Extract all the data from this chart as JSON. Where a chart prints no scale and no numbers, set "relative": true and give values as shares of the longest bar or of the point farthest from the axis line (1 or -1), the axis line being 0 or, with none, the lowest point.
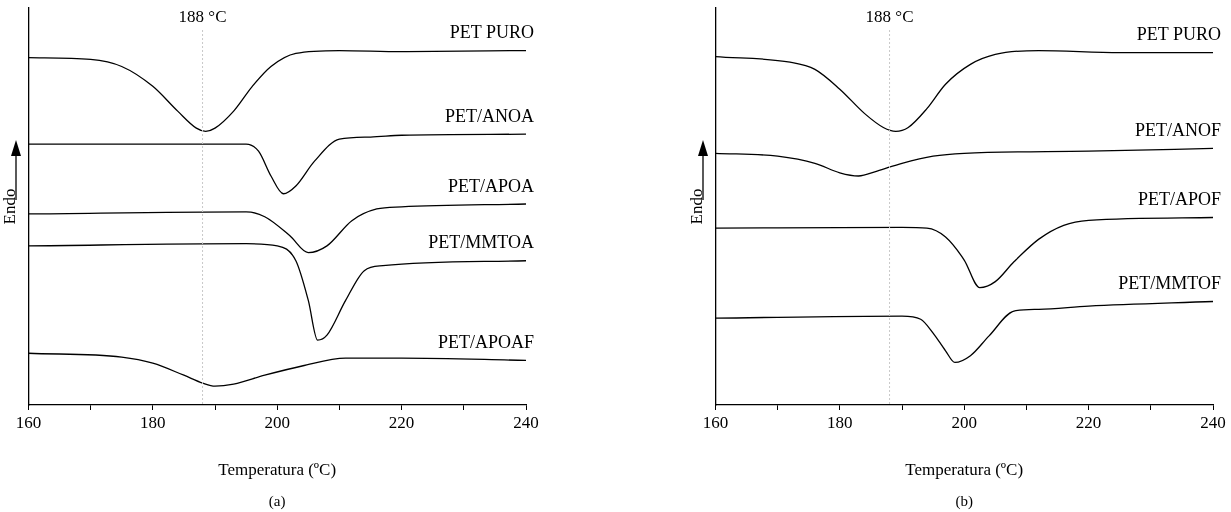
{
  "chart_data": [
    {
      "type": "line",
      "relative": true,
      "xlabel": "Temperatura (ºC)",
      "ylabel": "Endo",
      "annotations": [
        "(a)"
      ],
      "legend": false,
      "grid": false,
      "marker": "none",
      "line_style": "solid",
      "xlim": [
        160,
        240
      ],
      "xticks": [
        160,
        {
          "value": 170,
          "label": null
        },
        180,
        {
          "value": 190,
          "label": null
        },
        200,
        {
          "value": 210,
          "label": null
        },
        220,
        {
          "value": 230,
          "label": null
        },
        240
      ],
      "ref_lines": [
        {
          "axis": "x",
          "value": 188,
          "label": "188 °C",
          "color": "#c8c8c8",
          "line_style": "dotted"
        }
      ],
      "series": [
        {
          "name": "PET PURO",
          "color": "#000000",
          "x": [
            160,
            170,
            175,
            180,
            184,
            187,
            188.5,
            190,
            193,
            196,
            199,
            203,
            210,
            220,
            240
          ],
          "values": [
            0.98,
            0.975,
            0.955,
            0.899,
            0.829,
            0.781,
            0.772,
            0.781,
            0.829,
            0.899,
            0.955,
            0.992,
            1.0,
            0.997,
            1.0
          ]
        },
        {
          "name": "PET/ANOA",
          "color": "#000000",
          "x": [
            160,
            195,
            197,
            199,
            201,
            203,
            206,
            210,
            215,
            220,
            240
          ],
          "values": [
            0.736,
            0.736,
            0.716,
            0.646,
            0.596,
            0.618,
            0.688,
            0.75,
            0.756,
            0.761,
            0.764
          ]
        },
        {
          "name": "PET/APOA",
          "color": "#000000",
          "x": [
            160,
            195,
            198,
            202,
            205,
            208,
            212,
            216,
            220,
            240
          ],
          "values": [
            0.539,
            0.545,
            0.531,
            0.478,
            0.43,
            0.449,
            0.52,
            0.553,
            0.559,
            0.567
          ]
        },
        {
          "name": "PET/MMTOA",
          "color": "#000000",
          "x": [
            160,
            195,
            200,
            203,
            205,
            206.5,
            208,
            211,
            214,
            217,
            240
          ],
          "values": [
            0.449,
            0.455,
            0.449,
            0.407,
            0.295,
            0.183,
            0.197,
            0.295,
            0.379,
            0.393,
            0.407
          ]
        },
        {
          "name": "PET/APOAF",
          "color": "#000000",
          "x": [
            160,
            175,
            180,
            185,
            188,
            190,
            193,
            198,
            204,
            211,
            220,
            240
          ],
          "values": [
            0.146,
            0.135,
            0.118,
            0.084,
            0.062,
            0.053,
            0.059,
            0.084,
            0.11,
            0.132,
            0.132,
            0.126
          ]
        }
      ]
    },
    {
      "type": "line",
      "relative": true,
      "xlabel": "Temperatura (ºC)",
      "ylabel": "Endo",
      "annotations": [
        "(b)"
      ],
      "legend": false,
      "grid": false,
      "marker": "none",
      "line_style": "solid",
      "xlim": [
        160,
        240
      ],
      "xticks": [
        160,
        {
          "value": 170,
          "label": null
        },
        180,
        {
          "value": 190,
          "label": null
        },
        200,
        {
          "value": 210,
          "label": null
        },
        220,
        {
          "value": 230,
          "label": null
        },
        240
      ],
      "ref_lines": [
        {
          "axis": "x",
          "value": 188,
          "label": "188 °C",
          "color": "#c8c8c8",
          "line_style": "dotted"
        }
      ],
      "series": [
        {
          "name": "PET PURO",
          "color": "#000000",
          "x": [
            160,
            172,
            176,
            180,
            184,
            187,
            189,
            191,
            194,
            197,
            201,
            205,
            212,
            225,
            240
          ],
          "values": [
            0.983,
            0.967,
            0.947,
            0.891,
            0.822,
            0.783,
            0.772,
            0.783,
            0.836,
            0.905,
            0.961,
            0.989,
            1.0,
            0.994,
            0.994
          ]
        },
        {
          "name": "PET/ANOF",
          "color": "#000000",
          "x": [
            160,
            170,
            176,
            180,
            183,
            186,
            190,
            195,
            200,
            220,
            240
          ],
          "values": [
            0.71,
            0.702,
            0.682,
            0.655,
            0.646,
            0.66,
            0.682,
            0.702,
            0.71,
            0.716,
            0.724
          ]
        },
        {
          "name": "PET/APOF",
          "color": "#000000",
          "x": [
            160,
            190,
            194,
            197,
            200,
            202.5,
            205,
            208,
            212,
            216,
            220,
            240
          ],
          "values": [
            0.499,
            0.501,
            0.499,
            0.474,
            0.409,
            0.331,
            0.348,
            0.404,
            0.468,
            0.507,
            0.521,
            0.529
          ]
        },
        {
          "name": "PET/MMTOF",
          "color": "#000000",
          "x": [
            160,
            190,
            193,
            195,
            197,
            198.5,
            201,
            204,
            208,
            212,
            220,
            240
          ],
          "values": [
            0.245,
            0.251,
            0.242,
            0.203,
            0.153,
            0.12,
            0.139,
            0.195,
            0.265,
            0.27,
            0.279,
            0.292
          ]
        }
      ]
    }
  ]
}
